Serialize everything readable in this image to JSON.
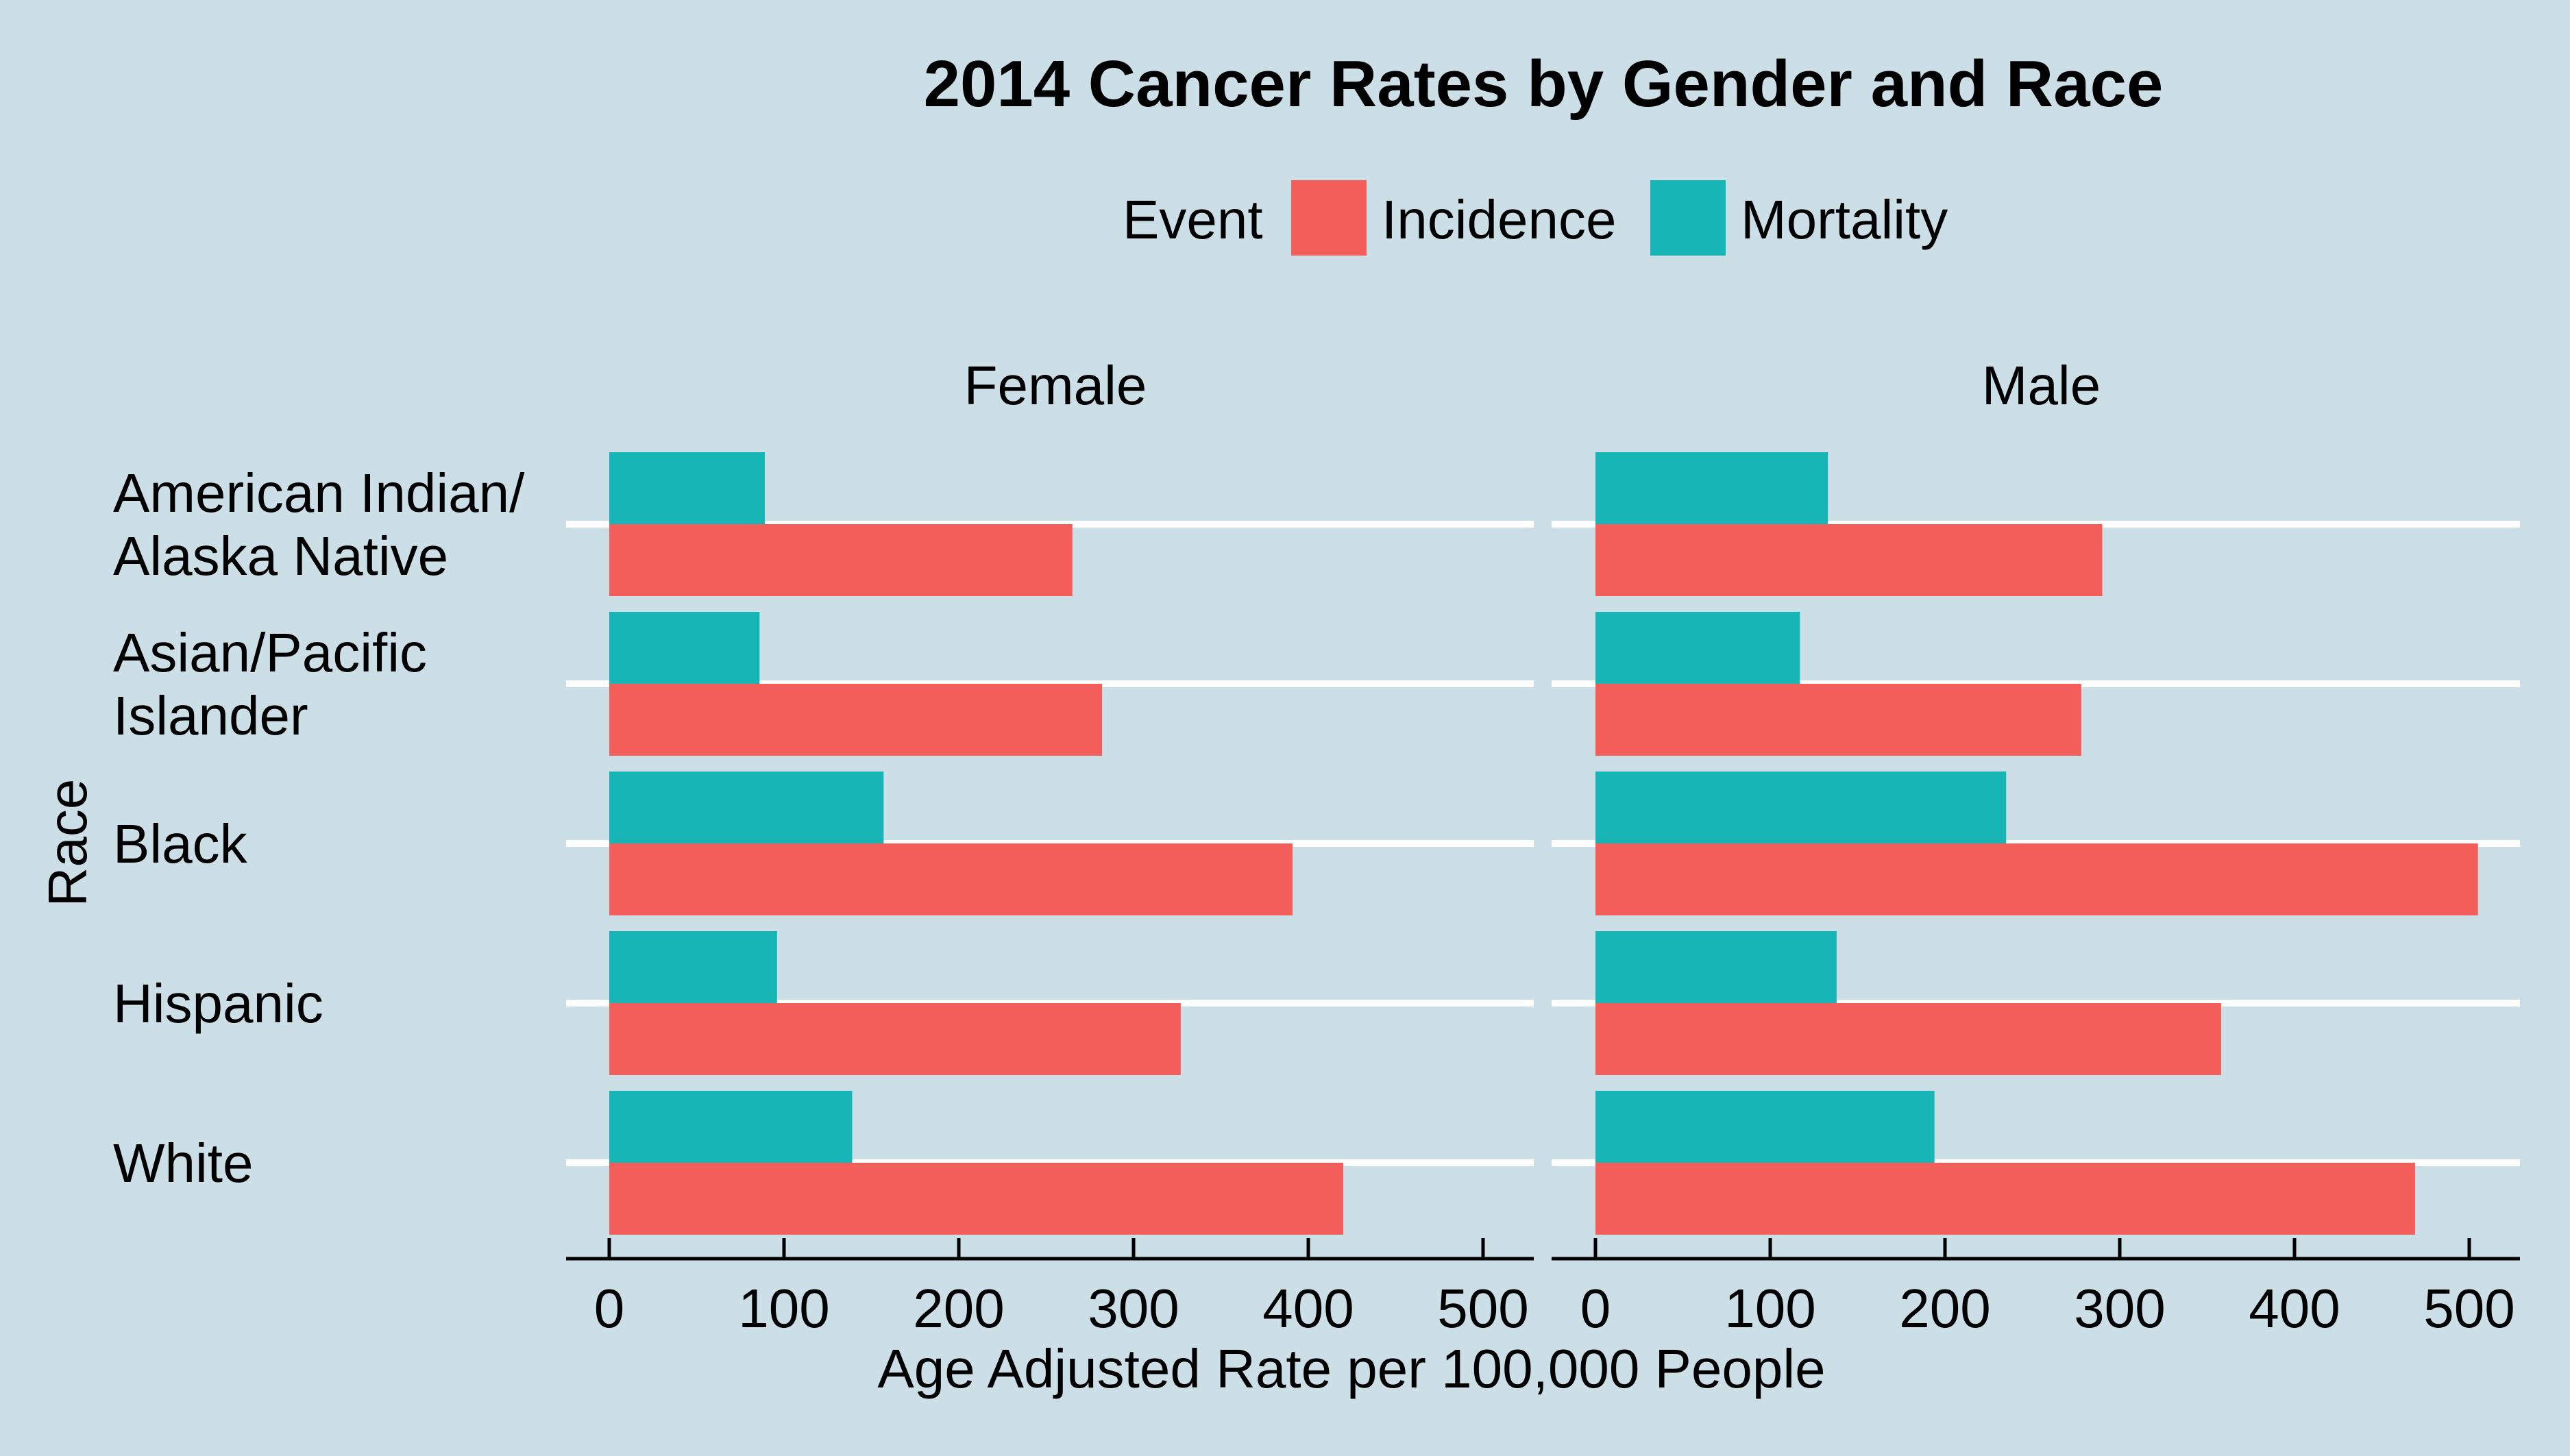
{
  "chart_data": {
    "type": "bar",
    "orientation": "horizontal",
    "title": "2014 Cancer Rates by Gender and Race",
    "xlabel": "Age Adjusted Rate per 100,000 People",
    "ylabel": "Race",
    "xlim": [
      0,
      500
    ],
    "xticks": [
      "0",
      "100",
      "200",
      "300",
      "400",
      "500"
    ],
    "grid": true,
    "legend": {
      "title": "Event",
      "position": "top",
      "items": [
        {
          "name": "Incidence",
          "color": "#f35e5a"
        },
        {
          "name": "Mortality",
          "color": "#17b5b6"
        }
      ]
    },
    "categories": [
      [
        "American Indian/",
        "Alaska Native"
      ],
      [
        "Asian/Pacific",
        "Islander"
      ],
      [
        "Black"
      ],
      [
        "Hispanic"
      ],
      [
        "White"
      ]
    ],
    "facets": [
      {
        "label": "Female",
        "series": [
          {
            "name": "Mortality",
            "values": [
              89,
              86,
              157,
              96,
              139
            ]
          },
          {
            "name": "Incidence",
            "values": [
              265,
              282,
              391,
              327,
              420
            ]
          }
        ]
      },
      {
        "label": "Male",
        "series": [
          {
            "name": "Mortality",
            "values": [
              133,
              117,
              235,
              138,
              194
            ]
          },
          {
            "name": "Incidence",
            "values": [
              290,
              278,
              505,
              358,
              469
            ]
          }
        ]
      }
    ]
  }
}
